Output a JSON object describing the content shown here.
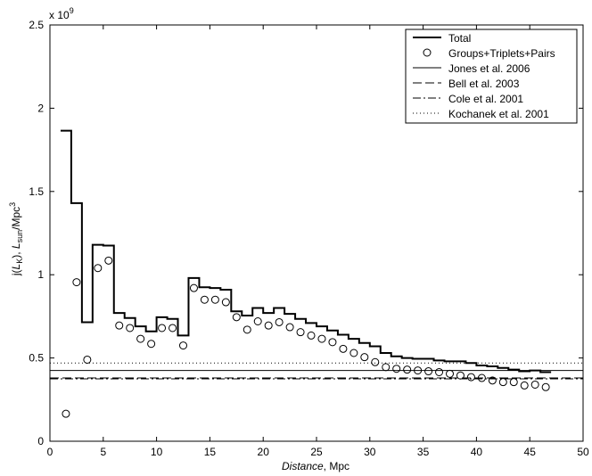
{
  "chart_data": {
    "type": "line",
    "xlim": [
      0,
      50
    ],
    "ylim": [
      0,
      2.5
    ],
    "y_multiplier_label": "x 10",
    "y_multiplier_exponent": "9",
    "x_ticks": [
      "0",
      "5",
      "10",
      "15",
      "20",
      "25",
      "30",
      "35",
      "40",
      "45",
      "50"
    ],
    "y_ticks": [
      "0",
      "0.5",
      "1",
      "1.5",
      "2",
      "2.5"
    ],
    "xlabel_italic": "Distance",
    "xlabel_rest": ", Mpc",
    "ylabel_parts": [
      "j(",
      "L",
      "K",
      "), ",
      "L",
      "sun",
      "/Mpc",
      "3"
    ],
    "grid": false,
    "legend_position": "top-right",
    "series": [
      {
        "name": "Total",
        "style": "step",
        "color": "#000000",
        "bin_edges": [
          1,
          2,
          3,
          4,
          5,
          6,
          7,
          8,
          9,
          10,
          11,
          12,
          13,
          14,
          15,
          16,
          17,
          18,
          19,
          20,
          21,
          22,
          23,
          24,
          25,
          26,
          27,
          28,
          29,
          30,
          31,
          32,
          33,
          34,
          35,
          36,
          37,
          38,
          39,
          40,
          41,
          42,
          43,
          44,
          45,
          46,
          47
        ],
        "values": [
          1.865,
          1.43,
          0.715,
          1.18,
          1.175,
          0.77,
          0.74,
          0.69,
          0.66,
          0.745,
          0.735,
          0.635,
          0.98,
          0.925,
          0.92,
          0.91,
          0.78,
          0.755,
          0.8,
          0.77,
          0.8,
          0.765,
          0.735,
          0.71,
          0.69,
          0.665,
          0.64,
          0.615,
          0.59,
          0.57,
          0.53,
          0.51,
          0.5,
          0.495,
          0.495,
          0.485,
          0.48,
          0.48,
          0.47,
          0.455,
          0.45,
          0.44,
          0.43,
          0.42,
          0.425,
          0.415
        ]
      },
      {
        "name": "Groups+Triplets+Pairs",
        "style": "markers",
        "x": [
          1.5,
          2.5,
          3.5,
          4.5,
          5.5,
          6.5,
          7.5,
          8.5,
          9.5,
          10.5,
          11.5,
          12.5,
          13.5,
          14.5,
          15.5,
          16.5,
          17.5,
          18.5,
          19.5,
          20.5,
          21.5,
          22.5,
          23.5,
          24.5,
          25.5,
          26.5,
          27.5,
          28.5,
          29.5,
          30.5,
          31.5,
          32.5,
          33.5,
          34.5,
          35.5,
          36.5,
          37.5,
          38.5,
          39.5,
          40.5,
          41.5,
          42.5,
          43.5,
          44.5,
          45.5,
          46.5
        ],
        "values": [
          0.165,
          0.955,
          0.49,
          1.04,
          1.085,
          0.695,
          0.68,
          0.615,
          0.585,
          0.68,
          0.68,
          0.575,
          0.92,
          0.85,
          0.85,
          0.835,
          0.745,
          0.67,
          0.72,
          0.695,
          0.715,
          0.685,
          0.655,
          0.635,
          0.615,
          0.595,
          0.555,
          0.53,
          0.505,
          0.475,
          0.445,
          0.435,
          0.43,
          0.425,
          0.42,
          0.415,
          0.405,
          0.395,
          0.385,
          0.38,
          0.365,
          0.355,
          0.355,
          0.335,
          0.34,
          0.325
        ]
      },
      {
        "name": "Jones et al. 2006",
        "style": "hline",
        "value": 0.425,
        "dash": ""
      },
      {
        "name": "Bell et al. 2003",
        "style": "hline",
        "value": 0.38,
        "dash": "10 4"
      },
      {
        "name": "Cole et al. 2001",
        "style": "hline",
        "value": 0.375,
        "dash": "9 3 2 3"
      },
      {
        "name": "Kochanek et al. 2001",
        "style": "hline",
        "value": 0.47,
        "dash": "1 3"
      }
    ]
  }
}
